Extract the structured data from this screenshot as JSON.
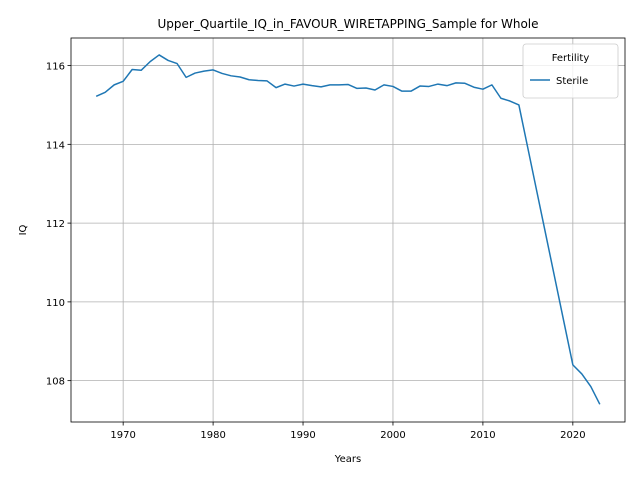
{
  "chart_data": {
    "type": "line",
    "title": "Upper_Quartile_IQ_in_FAVOUR_WIRETAPPING_Sample for Whole",
    "xlabel": "Years",
    "ylabel": "IQ",
    "xlim": [
      1964.2,
      2025.8
    ],
    "ylim": [
      106.95,
      116.7
    ],
    "xticks": [
      1970,
      1980,
      1990,
      2000,
      2010,
      2020
    ],
    "yticks": [
      108,
      110,
      112,
      114,
      116
    ],
    "grid": true,
    "legend": {
      "title": "Fertility",
      "placement": "top-right"
    },
    "series": [
      {
        "name": "Sterile",
        "color": "#1f77b4",
        "x": [
          1967,
          1968,
          1969,
          1970,
          1971,
          1972,
          1973,
          1974,
          1975,
          1976,
          1977,
          1978,
          1979,
          1980,
          1981,
          1982,
          1983,
          1984,
          1985,
          1986,
          1987,
          1988,
          1989,
          1990,
          1991,
          1992,
          1993,
          1994,
          1995,
          1996,
          1997,
          1998,
          1999,
          2000,
          2001,
          2002,
          2003,
          2004,
          2005,
          2006,
          2007,
          2008,
          2009,
          2010,
          2011,
          2012,
          2013,
          2014,
          2015,
          2016,
          2017,
          2018,
          2019,
          2020,
          2021,
          2022,
          2023
        ],
        "y": [
          115.22,
          115.32,
          115.51,
          115.6,
          115.9,
          115.88,
          116.1,
          116.27,
          116.13,
          116.05,
          115.7,
          115.81,
          115.86,
          115.89,
          115.8,
          115.74,
          115.71,
          115.64,
          115.62,
          115.61,
          115.44,
          115.53,
          115.48,
          115.53,
          115.49,
          115.46,
          115.51,
          115.51,
          115.52,
          115.42,
          115.43,
          115.38,
          115.51,
          115.47,
          115.35,
          115.35,
          115.48,
          115.47,
          115.53,
          115.49,
          115.56,
          115.55,
          115.45,
          115.4,
          115.51,
          115.17,
          115.1,
          115.0,
          113.9,
          112.8,
          111.7,
          110.6,
          109.5,
          108.4,
          108.17,
          107.85,
          107.4
        ]
      }
    ]
  }
}
